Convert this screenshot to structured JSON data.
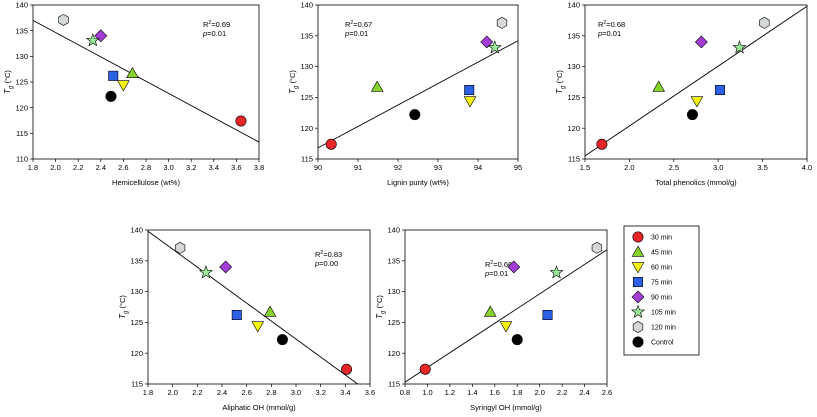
{
  "y_axis_label": {
    "symbol": "T",
    "subscript": "g",
    "unit": "(°C)"
  },
  "legend": [
    {
      "label": "30 min",
      "marker": "circle",
      "color": "#e8262a"
    },
    {
      "label": "45 min",
      "marker": "triangle-up",
      "color": "#86d12a"
    },
    {
      "label": "60 min",
      "marker": "triangle-down",
      "color": "#f5f20d"
    },
    {
      "label": "75 min",
      "marker": "square",
      "color": "#2c61e6"
    },
    {
      "label": "90 min",
      "marker": "diamond",
      "color": "#a23ed6"
    },
    {
      "label": "105 min",
      "marker": "star",
      "color": "#9be89a"
    },
    {
      "label": "120 min",
      "marker": "hexagon",
      "color": "#d4d8d6"
    },
    {
      "label": "Control",
      "marker": "circle",
      "color": "#000000"
    }
  ],
  "chart_data": [
    {
      "type": "scatter",
      "xlabel": "Hemicellulose (wt%)",
      "xlim": [
        1.8,
        3.8
      ],
      "ylim": [
        110,
        140
      ],
      "xticks": [
        "1.8",
        "2.0",
        "2.2",
        "2.4",
        "2.6",
        "2.8",
        "3.0",
        "3.2",
        "3.4",
        "3.6",
        "3.8"
      ],
      "yticks": [
        "110",
        "115",
        "120",
        "125",
        "130",
        "135",
        "140"
      ],
      "r2_label": "R",
      "r2_value": "=0.69",
      "p_label": "p",
      "p_value": "=0.01",
      "fit": {
        "x": [
          1.8,
          3.8
        ],
        "y": [
          137.0,
          113.3
        ]
      },
      "points": [
        3.64,
        2.68,
        2.6,
        2.51,
        2.4,
        2.33,
        2.07,
        2.49
      ],
      "values": [
        117.4,
        126.7,
        124.4,
        126.2,
        134.0,
        133.1,
        137.1,
        122.2
      ]
    },
    {
      "type": "scatter",
      "xlabel": "Lignin purity (wt%)",
      "xlim": [
        90,
        95
      ],
      "ylim": [
        115,
        140
      ],
      "xticks": [
        "90",
        "91",
        "92",
        "93",
        "94",
        "95"
      ],
      "yticks": [
        "115",
        "120",
        "125",
        "130",
        "135",
        "140"
      ],
      "r2_label": "R",
      "r2_value": "=0.67",
      "p_label": "p",
      "p_value": "=0.01",
      "fit": {
        "x": [
          90,
          95
        ],
        "y": [
          116.8,
          134.2
        ]
      },
      "points": [
        90.33,
        91.48,
        93.8,
        93.78,
        94.22,
        94.42,
        94.6,
        92.42
      ],
      "values": [
        117.4,
        126.7,
        124.4,
        126.2,
        134.0,
        133.1,
        137.1,
        122.2
      ]
    },
    {
      "type": "scatter",
      "xlabel": "Total phenolics (mmol/g)",
      "xlim": [
        1.5,
        4.0
      ],
      "ylim": [
        115,
        140
      ],
      "xticks": [
        "1.5",
        "2.0",
        "2.5",
        "3.0",
        "3.5",
        "4.0"
      ],
      "yticks": [
        "115",
        "120",
        "125",
        "130",
        "135",
        "140"
      ],
      "r2_label": "R",
      "r2_value": "=0.68",
      "p_label": "p",
      "p_value": "=0.01",
      "fit": {
        "x": [
          1.5,
          4.0
        ],
        "y": [
          115.5,
          139.8
        ]
      },
      "points": [
        1.69,
        2.33,
        2.76,
        3.02,
        2.81,
        3.24,
        3.52,
        2.71
      ],
      "values": [
        117.4,
        126.7,
        124.4,
        126.2,
        134.0,
        133.1,
        137.1,
        122.2
      ]
    },
    {
      "type": "scatter",
      "xlabel": "Aliphatic OH (mmol/g)",
      "xlim": [
        1.8,
        3.6
      ],
      "ylim": [
        115,
        140
      ],
      "xticks": [
        "1.8",
        "2.0",
        "2.2",
        "2.4",
        "2.6",
        "2.8",
        "3.0",
        "3.2",
        "3.4",
        "3.6"
      ],
      "yticks": [
        "115",
        "120",
        "125",
        "130",
        "135",
        "140"
      ],
      "r2_label": "R",
      "r2_value": "=0.83",
      "p_label": "p",
      "p_value": "=0.00",
      "fit": {
        "x": [
          1.8,
          3.5
        ],
        "y": [
          139.8,
          115.0
        ]
      },
      "points": [
        3.41,
        2.79,
        2.69,
        2.52,
        2.43,
        2.27,
        2.06,
        2.89
      ],
      "values": [
        117.4,
        126.7,
        124.4,
        126.2,
        134.0,
        133.1,
        137.1,
        122.2
      ]
    },
    {
      "type": "scatter",
      "xlabel": "Syringyl OH (mmol/g)",
      "xlim": [
        0.8,
        2.6
      ],
      "ylim": [
        115,
        140
      ],
      "xticks": [
        "0.8",
        "1.0",
        "1.2",
        "1.4",
        "1.6",
        "1.8",
        "2.0",
        "2.2",
        "2.4",
        "2.6"
      ],
      "yticks": [
        "115",
        "120",
        "125",
        "130",
        "135",
        "140"
      ],
      "r2_label": "R",
      "r2_value": "=0.66",
      "p_label": "p",
      "p_value": "=0.01",
      "fit": {
        "x": [
          0.8,
          2.6
        ],
        "y": [
          115.3,
          136.8
        ]
      },
      "points": [
        0.98,
        1.56,
        1.7,
        2.07,
        1.77,
        2.15,
        2.51,
        1.8
      ],
      "values": [
        117.4,
        126.7,
        124.4,
        126.2,
        134.0,
        133.1,
        137.1,
        122.2
      ]
    }
  ]
}
